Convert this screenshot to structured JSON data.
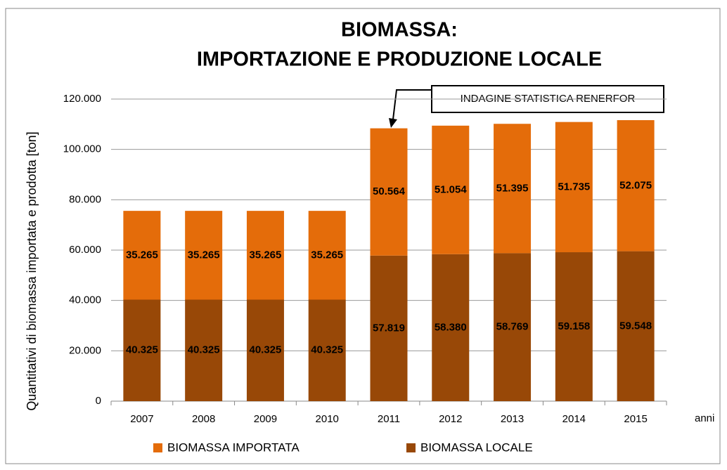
{
  "chart_data": {
    "type": "stacked_bar",
    "title": [
      "BIOMASSA:",
      "IMPORTAZIONE E PRODUZIONE LOCALE"
    ],
    "y_label": "Quantitativi di biomassa importata e prodotta [ton]",
    "x_label": "anni",
    "annotation": "INDAGINE STATISTICA RENERFOR",
    "categories": [
      "2007",
      "2008",
      "2009",
      "2010",
      "2011",
      "2012",
      "2013",
      "2014",
      "2015"
    ],
    "series": [
      {
        "name": "BIOMASSA IMPORTATA",
        "color": "#e46c0a",
        "values": [
          35265,
          35265,
          35265,
          35265,
          50564,
          51054,
          51395,
          51735,
          52075
        ],
        "value_labels": [
          "35.265",
          "35.265",
          "35.265",
          "35.265",
          "50.564",
          "51.054",
          "51.395",
          "51.735",
          "52.075"
        ]
      },
      {
        "name": "BIOMASSA LOCALE",
        "color": "#984807",
        "values": [
          40325,
          40325,
          40325,
          40325,
          57819,
          58380,
          58769,
          59158,
          59548
        ],
        "value_labels": [
          "40.325",
          "40.325",
          "40.325",
          "40.325",
          "57.819",
          "58.380",
          "58.769",
          "59.158",
          "59.548"
        ]
      }
    ],
    "ylim": [
      0,
      120000
    ],
    "yticks": [
      0,
      {
        "value": 20000,
        "label": "20.000"
      },
      {
        "value": 40000,
        "label": "40.000"
      },
      {
        "value": 60000,
        "label": "60.000"
      },
      {
        "value": 80000,
        "label": "80.000"
      },
      {
        "value": 100000,
        "label": "100.000"
      },
      {
        "value": 120000,
        "label": "120.000"
      }
    ],
    "grid": true
  }
}
